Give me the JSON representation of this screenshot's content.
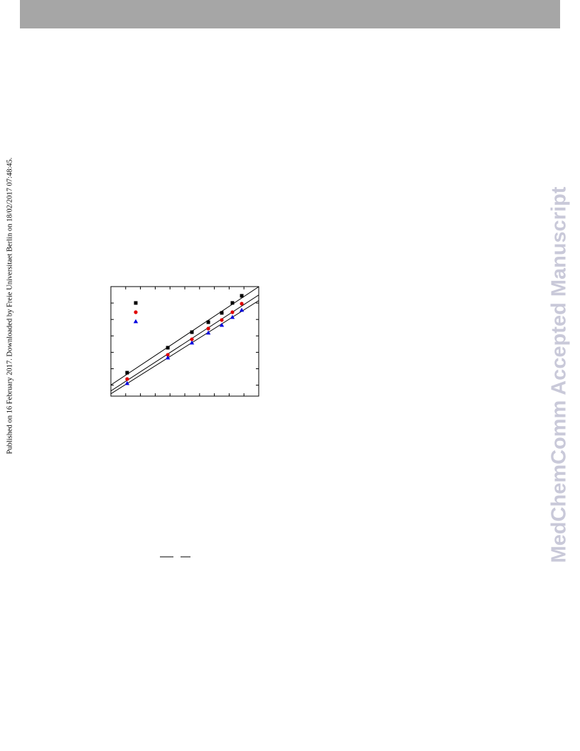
{
  "side_note": "Published on 16 February 2017. Downloaded by Freie Universitaet Berlin on 18/02/2017 07:48:45.",
  "watermark": "MedChemComm Accepted Manuscript",
  "chart_data": {
    "type": "scatter",
    "fit_lines": true,
    "x": [
      1.1,
      3.85,
      5.48,
      6.59,
      7.5,
      8.22,
      8.85
    ],
    "series": [
      {
        "color": "#000000",
        "marker": "square",
        "values": [
          2.14,
          4.42,
          5.84,
          6.75,
          7.6,
          8.51,
          9.16
        ]
      },
      {
        "color": "#e00000",
        "marker": "circle",
        "values": [
          1.56,
          3.77,
          5.19,
          6.17,
          6.95,
          7.66,
          8.44
        ]
      },
      {
        "color": "#0000e0",
        "marker": "triangle",
        "values": [
          1.17,
          3.51,
          4.87,
          5.78,
          6.49,
          7.21,
          7.86
        ]
      }
    ],
    "xlim": [
      0,
      10
    ],
    "ylim": [
      0,
      10
    ],
    "xticks": [
      1,
      2,
      3,
      4,
      5,
      6,
      7,
      8,
      9
    ],
    "yticks": [
      1,
      2.5,
      4,
      5.5,
      7,
      8.5
    ]
  }
}
